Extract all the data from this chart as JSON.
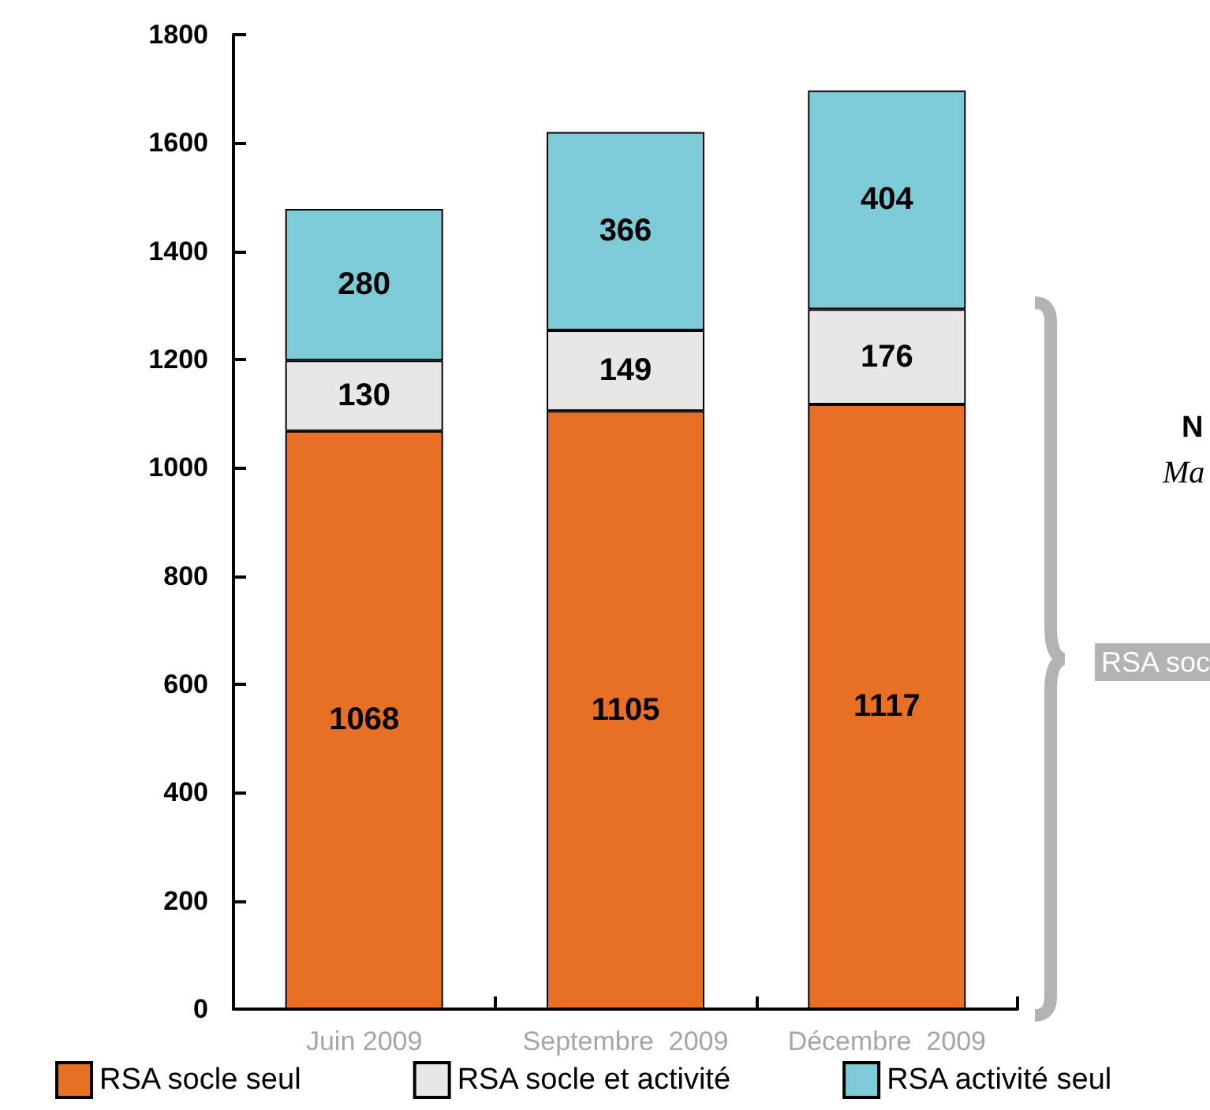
{
  "chart_data": {
    "type": "bar",
    "stacked": true,
    "categories": [
      "Juin 2009",
      "Septembre  2009",
      "Décembre  2009"
    ],
    "series": [
      {
        "name": "RSA socle seul",
        "color": "#e87025",
        "values": [
          1068,
          1105,
          1117
        ]
      },
      {
        "name": "RSA socle et activité",
        "color": "#e6e7e6",
        "values": [
          130,
          149,
          176
        ]
      },
      {
        "name": "RSA activité seul",
        "color": "#7ecbd8",
        "values": [
          280,
          366,
          404
        ]
      }
    ],
    "ylim": [
      0,
      1800
    ],
    "yticks": [
      0,
      200,
      400,
      600,
      800,
      1000,
      1200,
      1400,
      1600,
      1800
    ],
    "grid": false,
    "legend": "bottom",
    "data_labels": true,
    "annotations": [
      "N",
      "Ma",
      "RSA soc"
    ]
  }
}
